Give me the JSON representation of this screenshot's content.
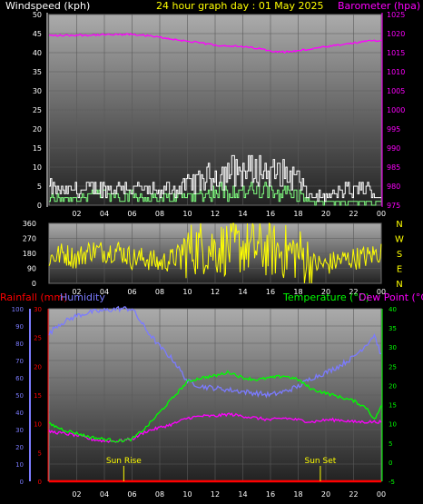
{
  "header": {
    "windspeed_label": "Windspeed (kph)",
    "title": "24 hour graph day : 01 May 2025",
    "barometer_label": "Barometer (hpa)"
  },
  "lower_header": {
    "rainfall_label": "Rainfall (mm)",
    "humidity_label": "Humidity",
    "temperature_label": "Temperature (°C)",
    "dewpoint_label": "Dew Point (°C)"
  },
  "annotations": {
    "sunrise": "Sun Rise",
    "sunset": "Sun Set"
  },
  "colors": {
    "windspeed": "#ffffff",
    "gust": "#ffffff",
    "wind_avg": "#80ff80",
    "barometer": "#ff00ff",
    "direction": "#ffff00",
    "rainfall": "#ff0000",
    "humidity": "#7b7bff",
    "temperature": "#00ff00",
    "dewpoint": "#ff00ff",
    "sun": "#ffff00"
  },
  "chart_data": [
    {
      "type": "line",
      "x_tick_labels": [
        "02",
        "04",
        "06",
        "08",
        "10",
        "12",
        "14",
        "16",
        "18",
        "20",
        "22",
        "00"
      ],
      "xlim": [
        0,
        24
      ],
      "left_axis": {
        "ylim": [
          0,
          50
        ],
        "ticks": [
          "0",
          "5",
          "10",
          "15",
          "20",
          "25",
          "30",
          "35",
          "40",
          "45",
          "50"
        ]
      },
      "right_axis": {
        "ylim": [
          975,
          1025
        ],
        "ticks": [
          "975",
          "980",
          "985",
          "990",
          "995",
          "1000",
          "1005",
          "1010",
          "1015",
          "1020",
          "1025"
        ]
      },
      "series": [
        {
          "name": "Windspeed (kph)",
          "axis": "left",
          "role": "gust",
          "x": [
            0,
            0.5,
            1,
            1.5,
            2,
            2.5,
            3,
            3.5,
            4,
            4.5,
            5,
            5.5,
            6,
            6.5,
            7,
            7.5,
            8,
            8.5,
            9,
            9.5,
            10,
            10.5,
            11,
            11.5,
            12,
            12.5,
            13,
            13.5,
            14,
            14.5,
            15,
            15.5,
            16,
            16.5,
            17,
            17.5,
            18,
            18.5,
            19,
            19.5,
            20,
            20.5,
            21,
            21.5,
            22,
            22.5,
            23,
            23.5,
            24
          ],
          "values": [
            7,
            6,
            5,
            6,
            6,
            5,
            7,
            6,
            7,
            6,
            7,
            8,
            6,
            7,
            5,
            6,
            4,
            7,
            6,
            7,
            8,
            9,
            10,
            11,
            12,
            12,
            13,
            14,
            13,
            14,
            13,
            14,
            12,
            13,
            12,
            11,
            10,
            5,
            3,
            4,
            3,
            4,
            5,
            6,
            5,
            7,
            6,
            4,
            3
          ]
        },
        {
          "name": "Wind average",
          "axis": "left",
          "role": "average",
          "x": [
            0,
            1,
            2,
            3,
            4,
            5,
            6,
            7,
            8,
            9,
            10,
            11,
            12,
            13,
            14,
            15,
            16,
            17,
            18,
            19,
            20,
            21,
            22,
            23,
            24
          ],
          "values": [
            2,
            2,
            2,
            3,
            3,
            3,
            3,
            2,
            2,
            2,
            3,
            3,
            4,
            4,
            4,
            4,
            4,
            4,
            3,
            1,
            1,
            1,
            1,
            1,
            1
          ]
        },
        {
          "name": "Barometer (hpa)",
          "axis": "right",
          "x": [
            0,
            1,
            2,
            3,
            4,
            5,
            6,
            7,
            8,
            9,
            10,
            11,
            12,
            13,
            14,
            15,
            16,
            17,
            18,
            19,
            20,
            21,
            22,
            23,
            24
          ],
          "values": [
            1019.5,
            1019.5,
            1019.6,
            1019.6,
            1019.7,
            1019.7,
            1019.8,
            1019.5,
            1019.0,
            1018.5,
            1018.0,
            1017.5,
            1017.0,
            1016.8,
            1016.5,
            1016.2,
            1015.5,
            1015.2,
            1015.5,
            1016.0,
            1016.5,
            1017.0,
            1017.5,
            1018.0,
            1018.3
          ]
        }
      ]
    },
    {
      "type": "line",
      "ylim": [
        0,
        360
      ],
      "left_ticks": [
        "0",
        "90",
        "180",
        "270",
        "360"
      ],
      "right_ticks": [
        "N",
        "E",
        "S",
        "W",
        "N"
      ],
      "x_tick_labels": [
        "02",
        "04",
        "06",
        "08",
        "10",
        "12",
        "14",
        "16",
        "18",
        "20",
        "22",
        "00"
      ],
      "xlim": [
        0,
        24
      ],
      "series": [
        {
          "name": "Wind direction",
          "x": [
            0,
            1,
            2,
            3,
            4,
            5,
            6,
            7,
            8,
            9,
            10,
            11,
            12,
            13,
            14,
            15,
            16,
            17,
            18,
            19,
            20,
            21,
            22,
            23,
            24
          ],
          "values": [
            150,
            180,
            150,
            200,
            190,
            200,
            150,
            150,
            120,
            150,
            200,
            220,
            210,
            210,
            220,
            210,
            200,
            190,
            180,
            120,
            110,
            140,
            150,
            160,
            190
          ]
        }
      ]
    },
    {
      "type": "line",
      "x_tick_labels": [
        "02",
        "04",
        "06",
        "08",
        "10",
        "12",
        "14",
        "16",
        "18",
        "20",
        "22",
        "00"
      ],
      "xlim": [
        0,
        24
      ],
      "humidity_axis": {
        "ylim": [
          0,
          100
        ],
        "ticks": [
          "0",
          "10",
          "20",
          "30",
          "40",
          "50",
          "60",
          "70",
          "80",
          "90",
          "100"
        ]
      },
      "rainfall_axis": {
        "ylim": [
          0,
          30
        ],
        "ticks": [
          "0",
          "5",
          "10",
          "15",
          "20",
          "25",
          "30"
        ]
      },
      "temperature_axis": {
        "ylim": [
          -5,
          40
        ],
        "ticks": [
          "-5",
          "0",
          "5",
          "10",
          "15",
          "20",
          "25",
          "30",
          "35",
          "40"
        ]
      },
      "sunrise_hour": 5.4,
      "sunset_hour": 19.6,
      "series": [
        {
          "name": "Humidity",
          "axis": "humidity",
          "x": [
            0,
            0.5,
            1,
            2,
            3,
            4,
            5,
            6,
            7,
            8,
            9,
            10,
            11,
            12,
            13,
            14,
            15,
            16,
            17,
            18,
            19,
            20,
            21,
            22,
            23,
            23.5,
            24
          ],
          "values": [
            85,
            90,
            92,
            96,
            98,
            99,
            100,
            100,
            88,
            78,
            70,
            58,
            55,
            54,
            53,
            52,
            51,
            50,
            52,
            55,
            60,
            63,
            67,
            72,
            80,
            85,
            73
          ]
        },
        {
          "name": "Rainfall (mm)",
          "axis": "rainfall",
          "x": [
            0,
            24
          ],
          "values": [
            0,
            0
          ]
        },
        {
          "name": "Temperature (°C)",
          "axis": "temperature",
          "x": [
            0,
            1,
            2,
            3,
            4,
            5,
            6,
            7,
            8,
            9,
            10,
            11,
            12,
            13,
            14,
            15,
            16,
            17,
            18,
            19,
            20,
            21,
            22,
            23,
            23.5,
            24
          ],
          "values": [
            10,
            8.5,
            7.5,
            6.5,
            6,
            5.5,
            6,
            9,
            13,
            17,
            21,
            22,
            22.5,
            23.5,
            22,
            21.5,
            22,
            22.5,
            21.5,
            19,
            18,
            17,
            16,
            14,
            11,
            14.5
          ]
        },
        {
          "name": "Dew Point (°C)",
          "axis": "temperature",
          "x": [
            0,
            1,
            2,
            3,
            4,
            5,
            6,
            7,
            8,
            9,
            10,
            11,
            12,
            13,
            14,
            15,
            16,
            17,
            18,
            19,
            20,
            21,
            22,
            23,
            24
          ],
          "values": [
            8,
            7.5,
            7,
            6,
            5.5,
            5.5,
            6,
            8,
            9,
            10,
            11.5,
            12,
            12,
            12.5,
            12,
            11.5,
            11,
            11.5,
            11,
            10.5,
            11,
            11,
            10.5,
            10.5,
            10.5
          ]
        }
      ]
    }
  ]
}
